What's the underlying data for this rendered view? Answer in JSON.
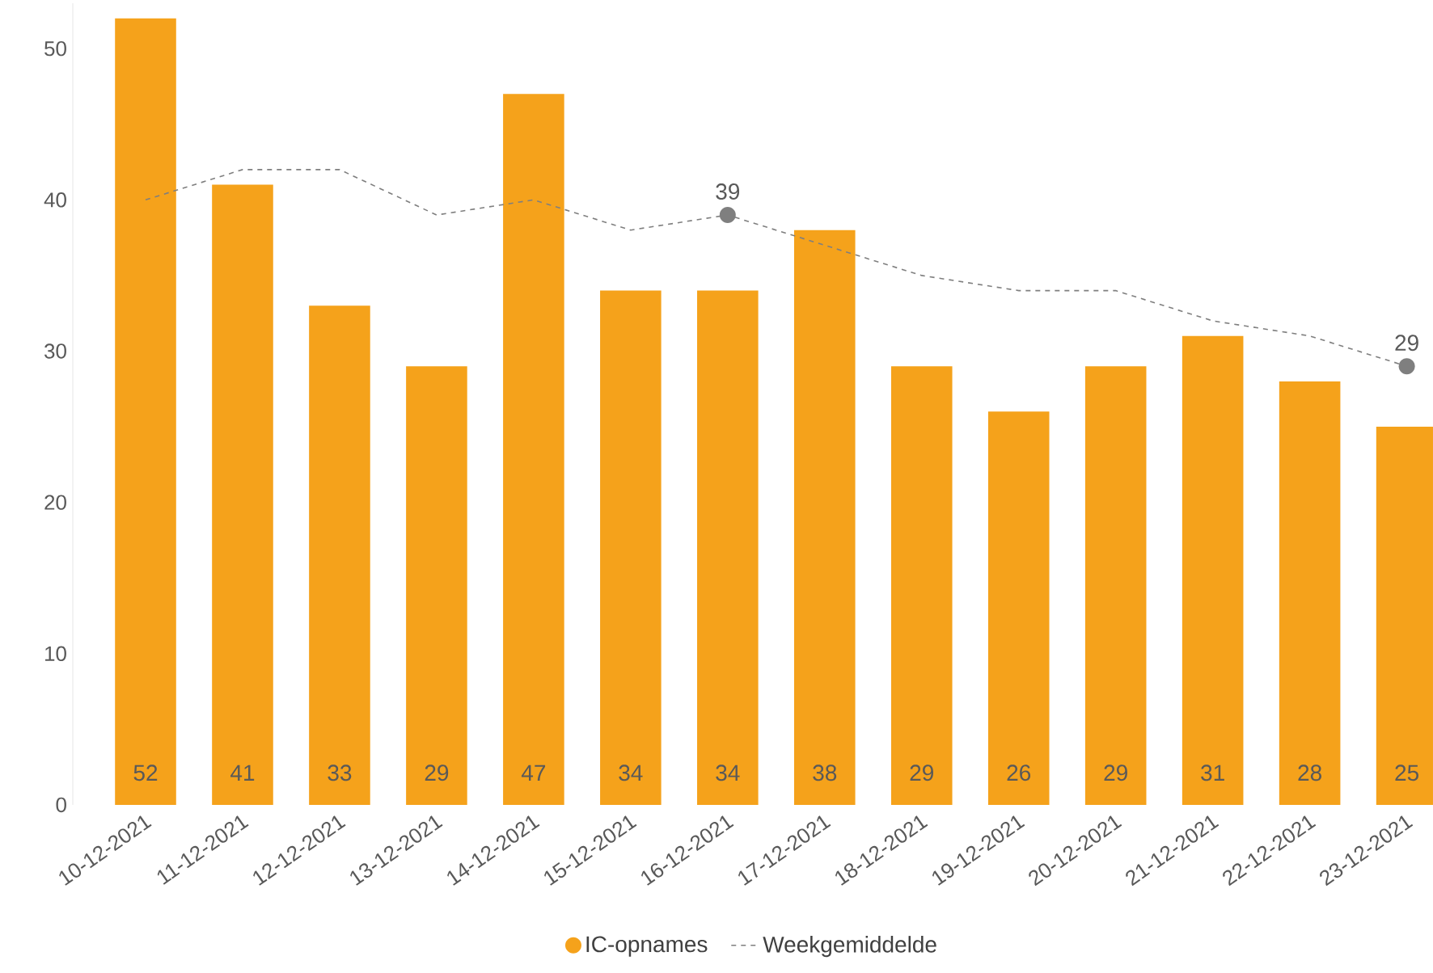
{
  "chart_data": {
    "type": "bar",
    "categories": [
      "10-12-2021",
      "11-12-2021",
      "12-12-2021",
      "13-12-2021",
      "14-12-2021",
      "15-12-2021",
      "16-12-2021",
      "17-12-2021",
      "18-12-2021",
      "19-12-2021",
      "20-12-2021",
      "21-12-2021",
      "22-12-2021",
      "23-12-2021"
    ],
    "series": [
      {
        "name": "IC-opnames",
        "color": "#f5a21b",
        "values": [
          52,
          41,
          33,
          29,
          47,
          34,
          34,
          38,
          29,
          26,
          29,
          31,
          28,
          25
        ]
      },
      {
        "name": "Weekgemiddelde",
        "type": "line",
        "color": "#7f7f7f",
        "line_style": "dashed",
        "values": [
          40,
          42,
          42,
          39,
          40,
          38,
          39,
          37,
          35,
          34,
          34,
          32,
          31,
          29
        ],
        "value_labels": [
          null,
          null,
          null,
          null,
          null,
          null,
          "39",
          null,
          null,
          null,
          null,
          null,
          null,
          "29"
        ]
      }
    ],
    "data_labels": true,
    "ylim": [
      0,
      53
    ],
    "yticks": [
      0,
      10,
      20,
      30,
      40,
      50
    ],
    "grid": false,
    "legend": "bottom"
  }
}
